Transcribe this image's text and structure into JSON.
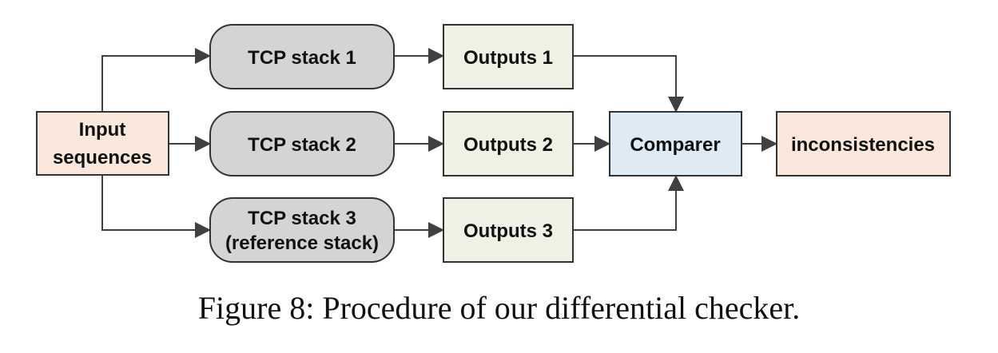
{
  "nodes": {
    "input": {
      "line1": "Input",
      "line2": "sequences",
      "fill": "#fbe8dc"
    },
    "tcp1": {
      "label": "TCP stack 1",
      "fill": "#d4d4d4"
    },
    "tcp2": {
      "label": "TCP stack 2",
      "fill": "#d4d4d4"
    },
    "tcp3": {
      "line1": "TCP stack 3",
      "line2": "(reference stack)",
      "fill": "#d4d4d4"
    },
    "out1": {
      "label": "Outputs 1",
      "fill": "#eef2e4"
    },
    "out2": {
      "label": "Outputs 2",
      "fill": "#eef2e4"
    },
    "out3": {
      "label": "Outputs 3",
      "fill": "#eef2e4"
    },
    "comparer": {
      "label": "Comparer",
      "fill": "#deeaf4"
    },
    "result": {
      "label": "inconsistencies",
      "fill": "#fbe8dc"
    }
  },
  "caption": "Figure 8: Procedure of our differential checker.",
  "colors": {
    "stroke": "#333333",
    "arrow": "#404040"
  }
}
